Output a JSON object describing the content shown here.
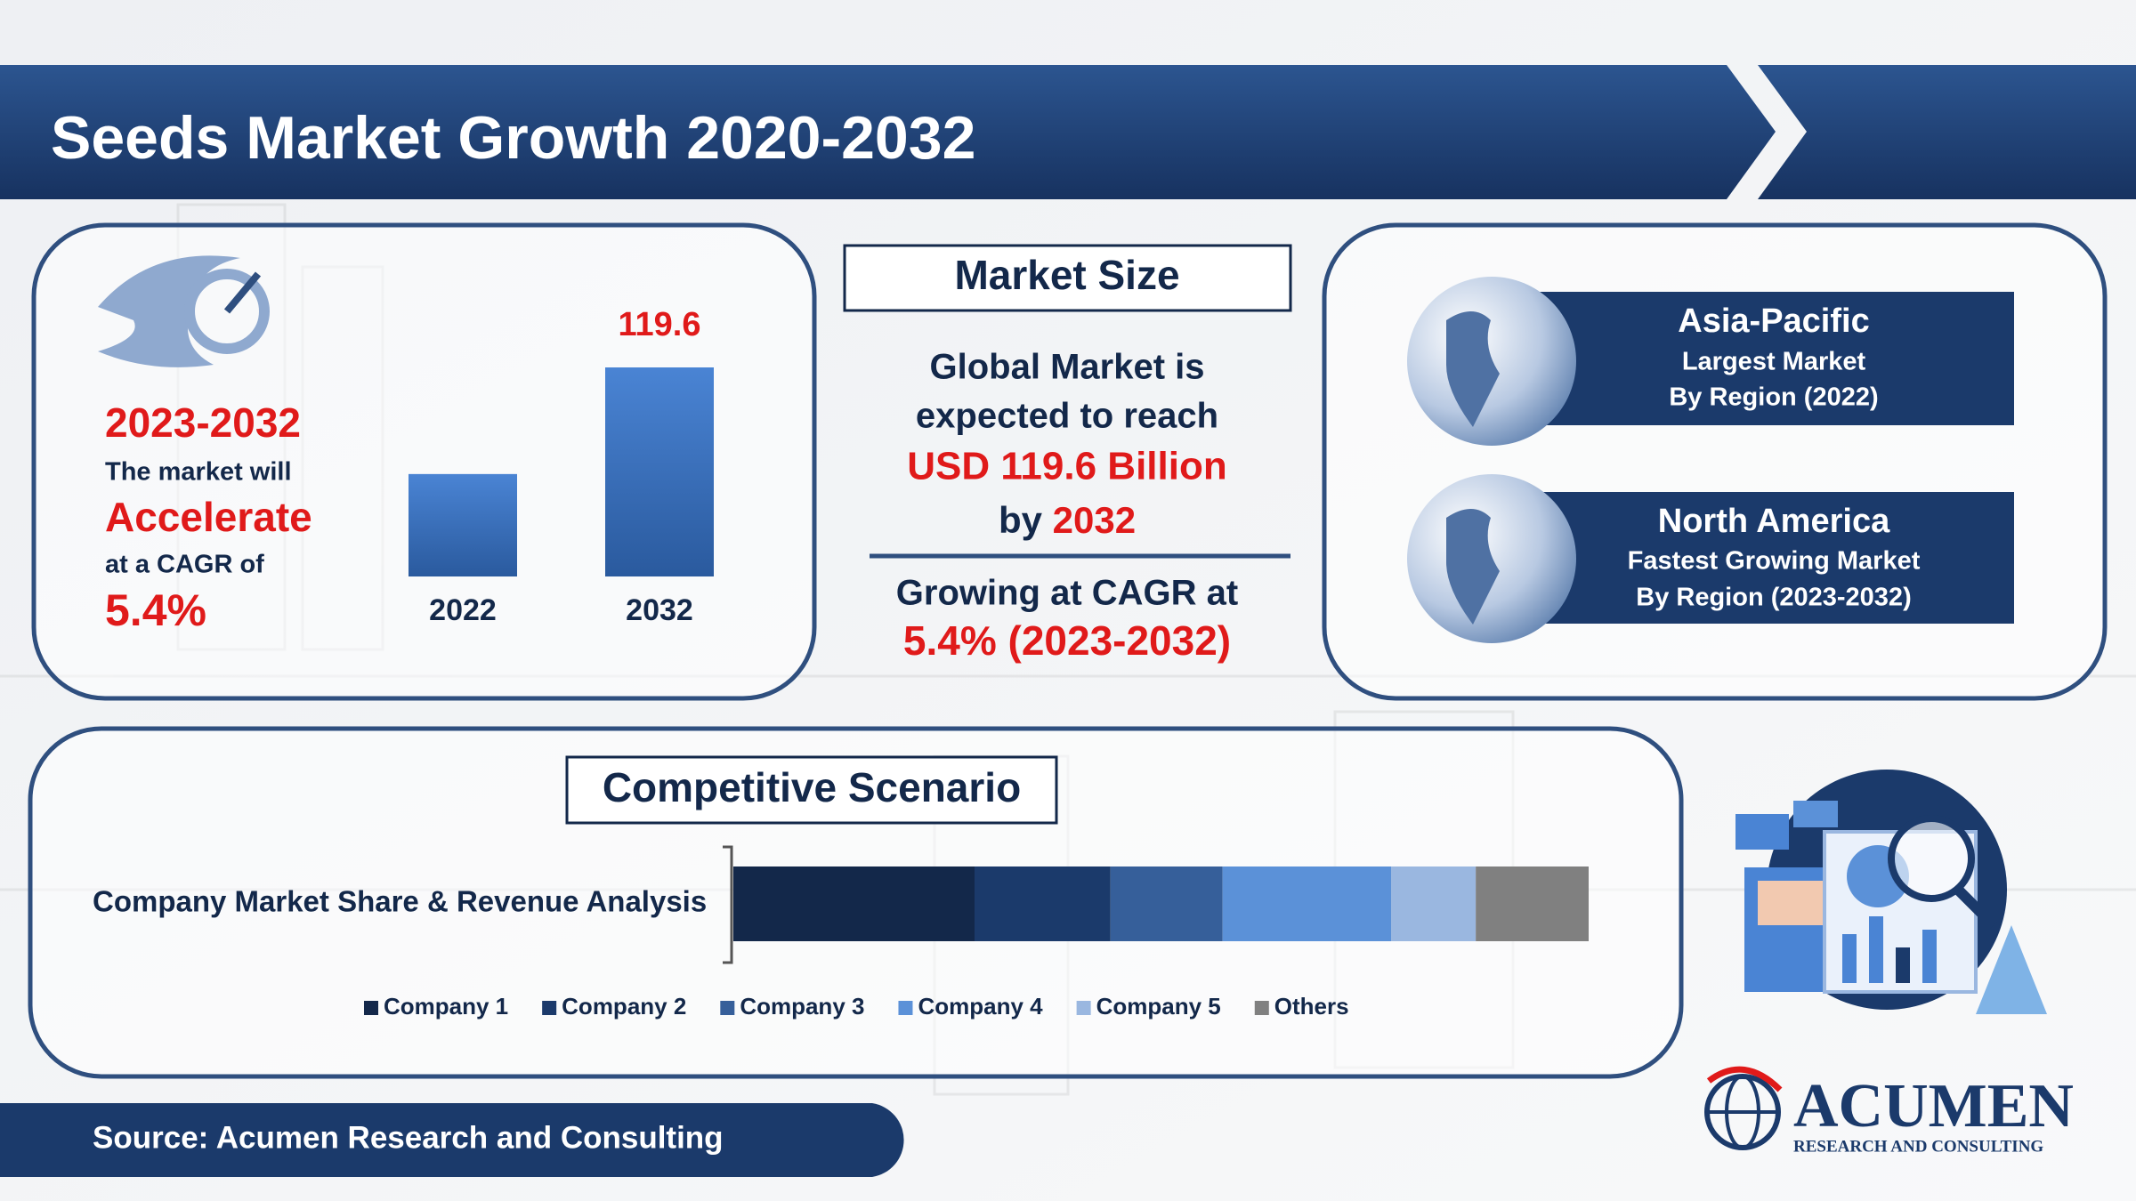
{
  "header": {
    "title": "Seeds Market Growth 2020-2032"
  },
  "growth": {
    "period": "2023-2032",
    "line1": "The market will",
    "highlight": "Accelerate",
    "line2": "at a CAGR of",
    "cagr": "5.4%",
    "chart": {
      "type": "bar",
      "categories": [
        "2022",
        "2032"
      ],
      "values": [
        58.6,
        119.6
      ],
      "labeled": [
        false,
        true
      ],
      "color": "#3a74c4"
    }
  },
  "market_size": {
    "title": "Market Size",
    "line1": "Global Market is",
    "line2": "expected to reach",
    "value": "USD 119.6 Billion",
    "by": "by",
    "year": "2032",
    "cagr_text": "Growing at CAGR at",
    "cagr": "5.4% (2023-2032)"
  },
  "regions": [
    {
      "name": "Asia-Pacific",
      "line1": "Largest Market",
      "line2": "By Region (2022)"
    },
    {
      "name": "North America",
      "line1": "Fastest Growing Market",
      "line2": "By Region (2023-2032)"
    }
  ],
  "competitive": {
    "title": "Competitive Scenario",
    "label": "Company Market Share & Revenue Analysis",
    "chart": {
      "type": "stacked-bar",
      "series": [
        {
          "name": "Company 1",
          "color": "#13284a",
          "values": [
            28.2
          ]
        },
        {
          "name": "Company 2",
          "color": "#1b3a6b",
          "values": [
            15.9
          ]
        },
        {
          "name": "Company 3",
          "color": "#365f9a",
          "values": [
            13.1
          ]
        },
        {
          "name": "Company 4",
          "color": "#5b91d8",
          "values": [
            19.7
          ]
        },
        {
          "name": "Company 5",
          "color": "#9ab7e0",
          "values": [
            9.9
          ]
        },
        {
          "name": "Others",
          "color": "#808080",
          "values": [
            13.2
          ]
        }
      ]
    }
  },
  "footer": {
    "source": "Source: Acumen Research and Consulting",
    "logo": "ACUMEN",
    "logo_sub": "RESEARCH AND CONSULTING"
  }
}
